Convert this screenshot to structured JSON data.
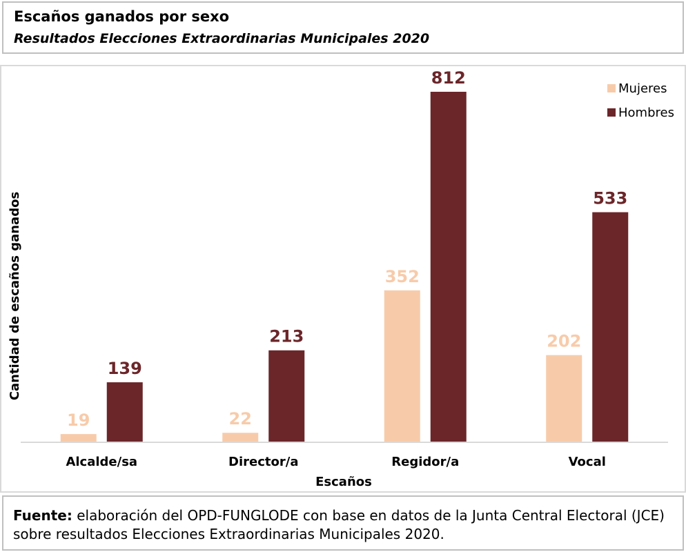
{
  "header": {
    "title": "Escaños ganados por sexo",
    "subtitle": "Resultados Elecciones Extraordinarias Municipales 2020"
  },
  "chart_data": {
    "type": "bar",
    "title": "Escaños ganados por sexo",
    "subtitle": "Resultados Elecciones Extraordinarias Municipales 2020",
    "xlabel": "Escaños",
    "ylabel": "Cantidad de escaños ganados",
    "categories": [
      "Alcalde/sa",
      "Director/a",
      "Regidor/a",
      "Vocal"
    ],
    "series": [
      {
        "name": "Mujeres",
        "values": [
          19,
          22,
          352,
          202
        ],
        "color": "#f7cbaa",
        "label_color": "#f7cbaa"
      },
      {
        "name": "Hombres",
        "values": [
          139,
          213,
          812,
          533
        ],
        "color": "#6b262a",
        "label_color": "#6b262a"
      }
    ],
    "ylim": [
      0,
      812
    ],
    "grid": false,
    "legend_position": "top-right",
    "data_labels": true
  },
  "footer": {
    "source_label": "Fuente:",
    "source_text": " elaboración del OPD-FUNGLODE con base en datos de la Junta Central Electoral (JCE) sobre resultados Elecciones Extraordinarias Municipales 2020."
  }
}
